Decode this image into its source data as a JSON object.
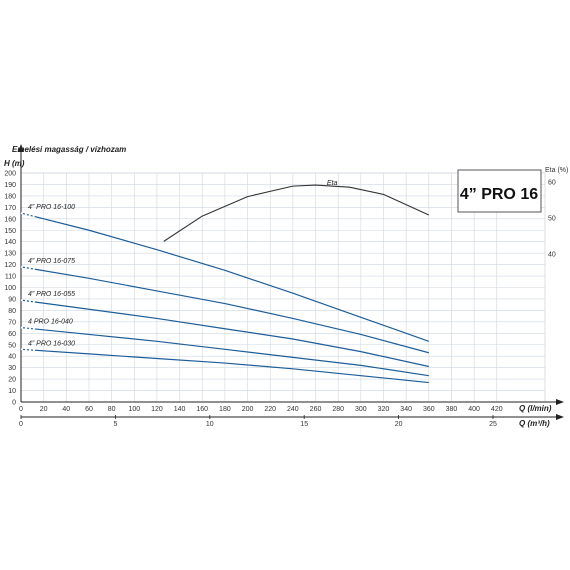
{
  "chart_data": {
    "type": "line",
    "title": "4” PRO 16",
    "subtitle": "Emelési magasság / vízhozam",
    "ylabel": "H (m)",
    "y2label": "Eta (%)",
    "xlabel_lpm": "Q (l/min)",
    "xlabel_m3h": "Q (m³/h)",
    "ylim": [
      0,
      200
    ],
    "yticks": [
      0,
      10,
      20,
      30,
      40,
      50,
      60,
      70,
      80,
      90,
      100,
      110,
      120,
      130,
      140,
      150,
      160,
      170,
      180,
      190,
      200
    ],
    "xlim_lpm": [
      0,
      440
    ],
    "xticks_lpm": [
      0,
      20,
      40,
      60,
      80,
      100,
      120,
      140,
      160,
      180,
      200,
      220,
      240,
      260,
      280,
      300,
      320,
      340,
      360,
      380,
      400,
      420
    ],
    "xticks_m3h": [
      0,
      5,
      10,
      15,
      20,
      25
    ],
    "y2ticks": [
      40,
      50,
      60
    ],
    "grid": true,
    "series": [
      {
        "name": "4” PRO 16-100",
        "x": [
          0,
          60,
          120,
          180,
          240,
          300,
          360
        ],
        "y": [
          165,
          150,
          133,
          115,
          95,
          74,
          53
        ]
      },
      {
        "name": "4” PRO 16-075",
        "x": [
          0,
          60,
          120,
          180,
          240,
          300,
          360
        ],
        "y": [
          118,
          108,
          97,
          86,
          73,
          59,
          43
        ]
      },
      {
        "name": "4” PRO 16-055",
        "x": [
          0,
          60,
          120,
          180,
          240,
          300,
          360
        ],
        "y": [
          89,
          81,
          73,
          64,
          55,
          44,
          31
        ]
      },
      {
        "name": "4 PRO 16-040",
        "x": [
          0,
          60,
          120,
          180,
          240,
          300,
          360
        ],
        "y": [
          65,
          59,
          53,
          46,
          39,
          32,
          23
        ]
      },
      {
        "name": "4” PRO 16-030",
        "x": [
          0,
          60,
          120,
          180,
          240,
          300,
          360
        ],
        "y": [
          46,
          42,
          38,
          34,
          29,
          23,
          17
        ]
      }
    ],
    "efficiency": {
      "name": "Eta",
      "x": [
        126,
        160,
        200,
        240,
        260,
        290,
        320,
        360
      ],
      "eta": [
        43.5,
        50.5,
        55.9,
        58.8,
        59.1,
        58.5,
        56.5,
        50.8
      ]
    }
  },
  "colors": {
    "series": "#1d5d99",
    "efficiency": "#333333",
    "grid": "#cfd8e0",
    "axis": "#222222"
  }
}
